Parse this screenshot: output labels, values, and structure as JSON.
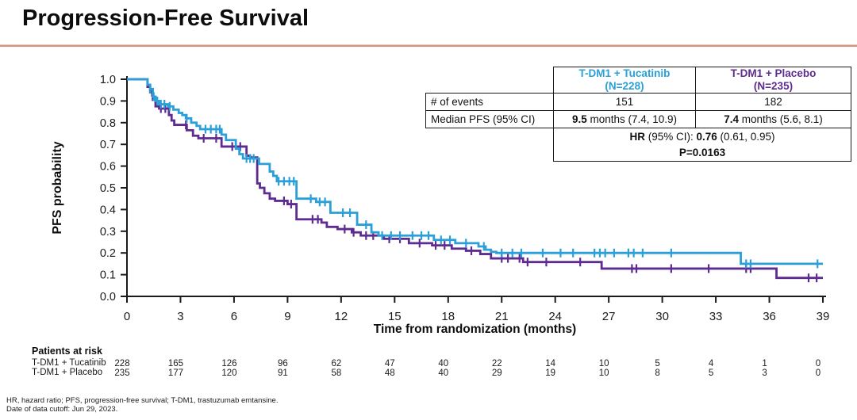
{
  "page_title": "Progression-Free Survival",
  "colors": {
    "tucatinib": "#2a9fd8",
    "placebo": "#5e2c90",
    "divider": "#d9937c",
    "axis": "#1a1a1a"
  },
  "chart_data": {
    "type": "line",
    "subtype": "kaplan-meier-step",
    "title": "Progression-Free Survival",
    "xlabel": "Time from randomization (months)",
    "ylabel": "PFS probability",
    "xlim": [
      0,
      39
    ],
    "ylim": [
      0.0,
      1.0
    ],
    "xticks": [
      0,
      3,
      6,
      9,
      12,
      15,
      18,
      21,
      24,
      27,
      30,
      33,
      36,
      39
    ],
    "yticks": [
      "0.0",
      "0.1",
      "0.2",
      "0.3",
      "0.4",
      "0.5",
      "0.6",
      "0.7",
      "0.8",
      "0.9",
      "1.0"
    ],
    "grid": false,
    "legend_position": "none",
    "series": [
      {
        "name": "T-DM1 + Tucatinib",
        "n": 228,
        "color": "#2a9fd8",
        "steps": [
          [
            0,
            1
          ],
          [
            1.15,
            0.975
          ],
          [
            1.3,
            0.955
          ],
          [
            1.45,
            0.92
          ],
          [
            1.6,
            0.9
          ],
          [
            1.8,
            0.885
          ],
          [
            2.3,
            0.875
          ],
          [
            2.6,
            0.86
          ],
          [
            2.9,
            0.845
          ],
          [
            3.1,
            0.835
          ],
          [
            3.3,
            0.82
          ],
          [
            3.6,
            0.8
          ],
          [
            3.9,
            0.785
          ],
          [
            4.1,
            0.77
          ],
          [
            5.3,
            0.745
          ],
          [
            5.55,
            0.72
          ],
          [
            6.1,
            0.68
          ],
          [
            6.3,
            0.655
          ],
          [
            6.5,
            0.635
          ],
          [
            7.4,
            0.61
          ],
          [
            8.0,
            0.575
          ],
          [
            8.2,
            0.555
          ],
          [
            8.4,
            0.53
          ],
          [
            9.5,
            0.45
          ],
          [
            10.6,
            0.435
          ],
          [
            11.4,
            0.385
          ],
          [
            12.9,
            0.33
          ],
          [
            13.7,
            0.295
          ],
          [
            14.1,
            0.28
          ],
          [
            17.2,
            0.26
          ],
          [
            18.4,
            0.245
          ],
          [
            19.7,
            0.23
          ],
          [
            20.1,
            0.215
          ],
          [
            20.4,
            0.205
          ],
          [
            20.7,
            0.2
          ],
          [
            34.4,
            0.15
          ]
        ],
        "censors": [
          1.3,
          1.5,
          1.7,
          1.9,
          2.1,
          2.4,
          3.35,
          4.4,
          4.7,
          5.0,
          5.2,
          6.7,
          6.9,
          7.1,
          8.5,
          8.8,
          9.1,
          9.35,
          10.3,
          10.8,
          11.1,
          12.1,
          12.5,
          13.4,
          14.3,
          14.8,
          15.3,
          16.0,
          16.5,
          16.9,
          17.6,
          18.1,
          19.0,
          20.0,
          21.0,
          21.6,
          22.1,
          23.3,
          24.3,
          25.0,
          26.2,
          26.5,
          26.8,
          27.3,
          28.1,
          28.4,
          28.9,
          30.5,
          34.7,
          34.95,
          38.7
        ]
      },
      {
        "name": "T-DM1 + Placebo",
        "n": 235,
        "color": "#5e2c90",
        "steps": [
          [
            0,
            1
          ],
          [
            1.15,
            0.965
          ],
          [
            1.3,
            0.94
          ],
          [
            1.45,
            0.905
          ],
          [
            1.6,
            0.875
          ],
          [
            1.8,
            0.865
          ],
          [
            2.35,
            0.835
          ],
          [
            2.5,
            0.81
          ],
          [
            2.65,
            0.79
          ],
          [
            3.35,
            0.765
          ],
          [
            3.7,
            0.74
          ],
          [
            4.0,
            0.728
          ],
          [
            5.3,
            0.69
          ],
          [
            6.7,
            0.648
          ],
          [
            6.9,
            0.64
          ],
          [
            7.3,
            0.52
          ],
          [
            7.45,
            0.5
          ],
          [
            7.7,
            0.475
          ],
          [
            8.0,
            0.45
          ],
          [
            8.3,
            0.44
          ],
          [
            9.0,
            0.425
          ],
          [
            9.5,
            0.355
          ],
          [
            10.9,
            0.34
          ],
          [
            11.2,
            0.32
          ],
          [
            11.8,
            0.31
          ],
          [
            12.6,
            0.295
          ],
          [
            13.1,
            0.28
          ],
          [
            14.4,
            0.265
          ],
          [
            15.8,
            0.245
          ],
          [
            17.1,
            0.235
          ],
          [
            18.2,
            0.22
          ],
          [
            19.0,
            0.21
          ],
          [
            19.8,
            0.195
          ],
          [
            20.4,
            0.175
          ],
          [
            22.2,
            0.158
          ],
          [
            26.6,
            0.128
          ],
          [
            36.4,
            0.085
          ]
        ],
        "censors": [
          1.4,
          1.9,
          2.15,
          3.3,
          4.3,
          5.0,
          5.9,
          6.35,
          8.8,
          9.2,
          10.4,
          10.7,
          12.2,
          12.7,
          13.4,
          13.8,
          14.7,
          15.3,
          16.4,
          17.3,
          17.8,
          19.3,
          21.0,
          21.35,
          22.0,
          22.45,
          23.5,
          25.4,
          28.3,
          28.55,
          30.5,
          32.6,
          34.7,
          34.95,
          38.2,
          38.65
        ]
      }
    ]
  },
  "stats_table": {
    "col_tucatinib": {
      "line1": "T-DM1 + Tucatinib",
      "line2": "(N=228)"
    },
    "col_placebo": {
      "line1": "T-DM1 + Placebo",
      "line2": "(N=235)"
    },
    "events_label": "# of events",
    "events_tucatinib": "151",
    "events_placebo": "182",
    "median_label": "Median PFS (95% CI)",
    "median_tucatinib_bold": "9.5",
    "median_tucatinib_rest": " months (7.4, 10.9)",
    "median_placebo_bold": "7.4",
    "median_placebo_rest": " months (5.6, 8.1)",
    "hr_label": "HR",
    "hr_mid": " (95% CI): ",
    "hr_value": "0.76",
    "hr_ci": " (0.61, 0.95)",
    "p_value": "P=0.0163"
  },
  "risk_table": {
    "heading": "Patients at risk",
    "rows": [
      {
        "label": "T-DM1 + Tucatinib",
        "counts": [
          "228",
          "165",
          "126",
          "96",
          "62",
          "47",
          "40",
          "22",
          "14",
          "10",
          "5",
          "4",
          "1",
          "0"
        ]
      },
      {
        "label": "T-DM1 + Placebo",
        "counts": [
          "235",
          "177",
          "120",
          "91",
          "58",
          "48",
          "40",
          "29",
          "19",
          "10",
          "8",
          "5",
          "3",
          "0"
        ]
      }
    ]
  },
  "footnotes": [
    "HR, hazard ratio; PFS, progression-free survival; T-DM1, trastuzumab emtansine.",
    "Date of data cutoff: Jun 29, 2023."
  ]
}
